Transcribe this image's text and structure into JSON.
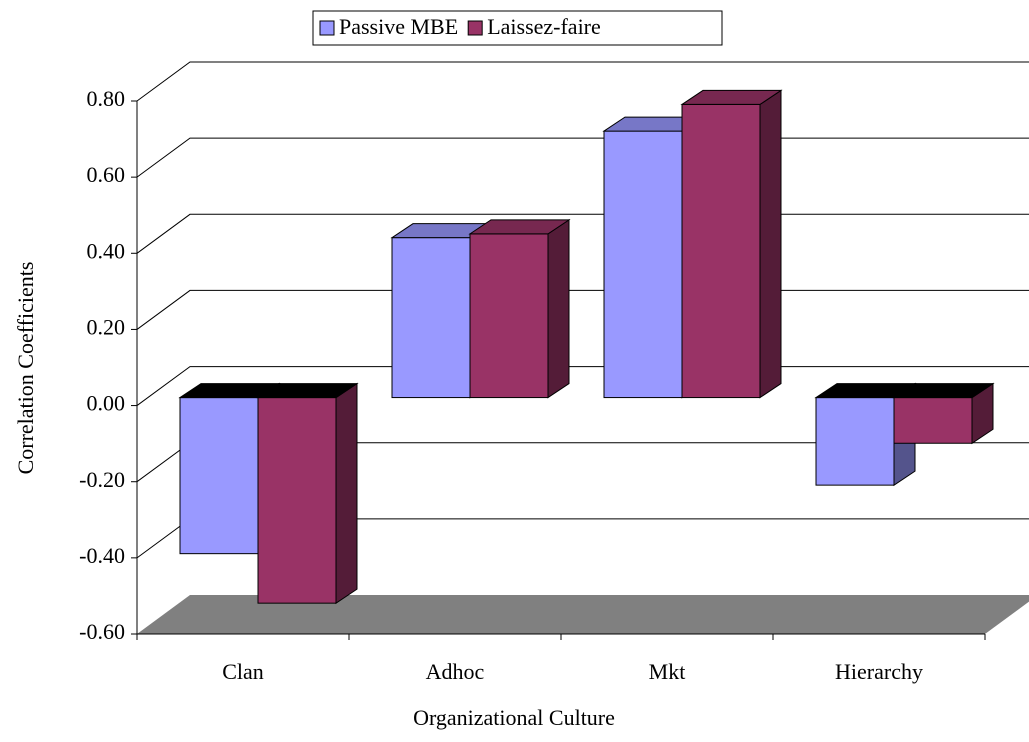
{
  "chart_data": {
    "type": "bar3d",
    "x_label": "Organizational Culture",
    "y_label": "Correlation Coefficients",
    "categories": [
      "Clan",
      "Adhoc",
      "Mkt",
      "Hierarchy"
    ],
    "series": [
      {
        "name": "Passive MBE",
        "color": "#9999ff",
        "values": [
          -0.41,
          0.42,
          0.7,
          -0.23
        ]
      },
      {
        "name": "Laissez-faire",
        "color": "#993366",
        "values": [
          -0.54,
          0.43,
          0.77,
          -0.12
        ]
      }
    ],
    "ylim": [
      -0.6,
      0.8
    ],
    "yticks": [
      {
        "value": -0.6,
        "label": "-0.60"
      },
      {
        "value": -0.4,
        "label": "-0.40"
      },
      {
        "value": -0.2,
        "label": "-0.20"
      },
      {
        "value": 0,
        "label": "0.00"
      },
      {
        "value": 0.2,
        "label": "0.20"
      },
      {
        "value": 0.4,
        "label": "0.40"
      },
      {
        "value": 0.6,
        "label": "0.60"
      },
      {
        "value": 0.8,
        "label": "0.80"
      }
    ],
    "grid": true,
    "legend": "top"
  }
}
